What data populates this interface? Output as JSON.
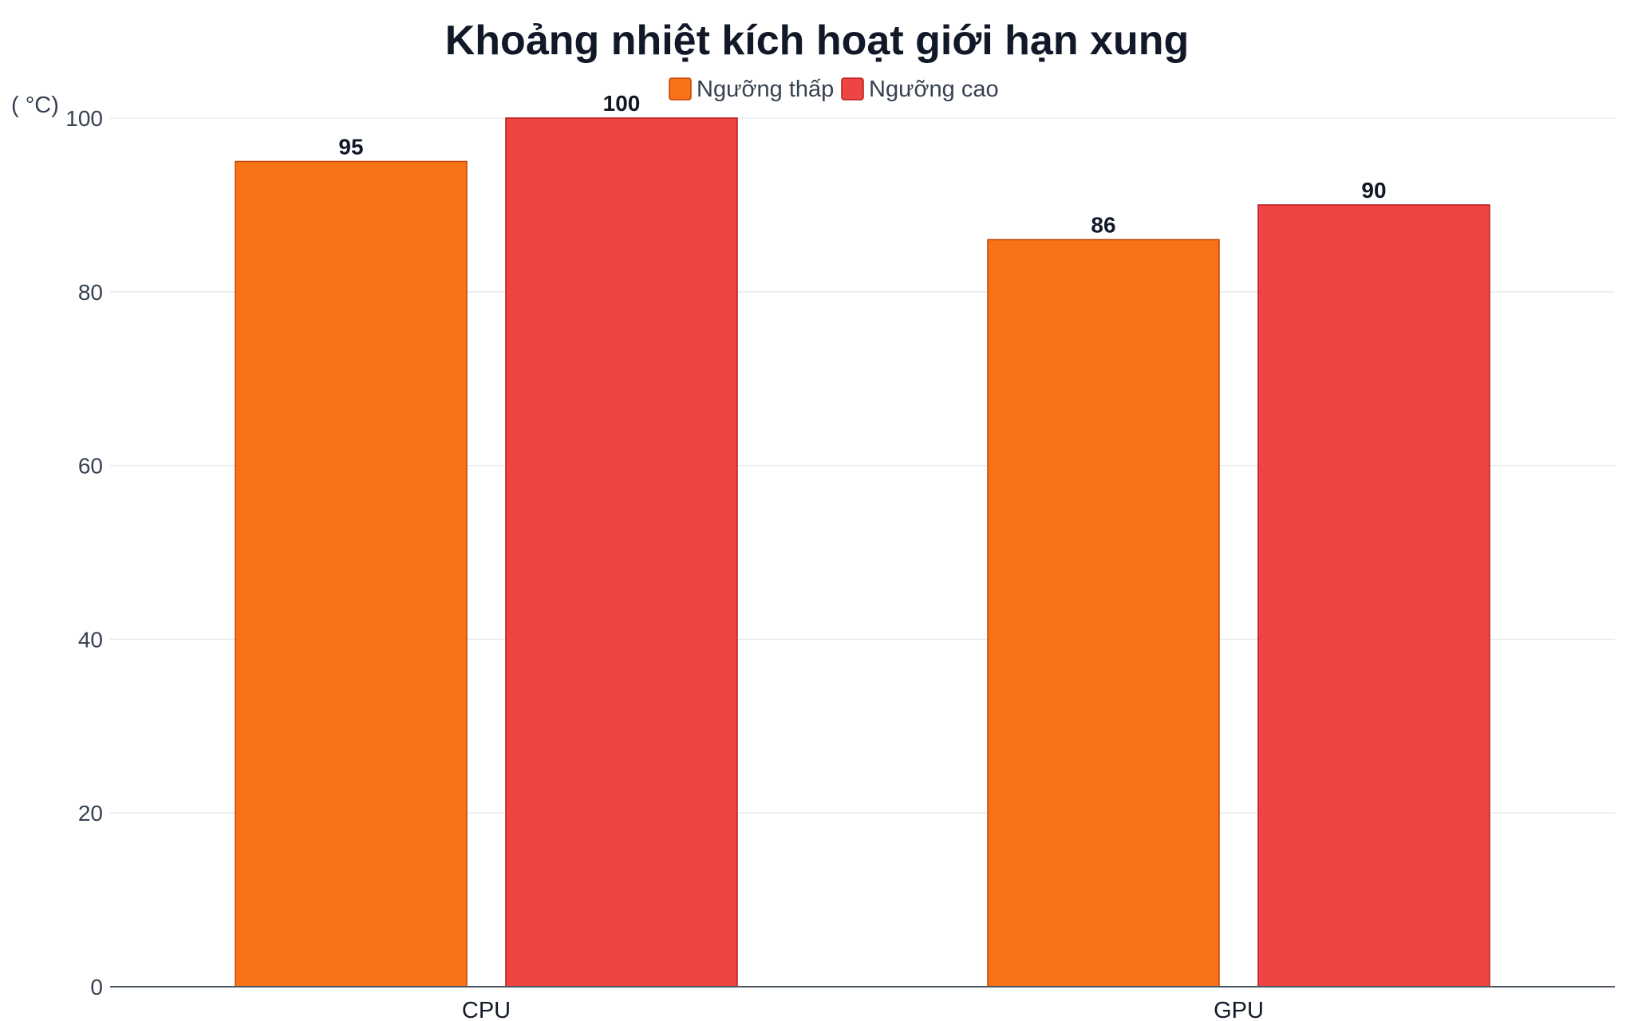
{
  "chart_data": {
    "type": "bar",
    "title": "Khoảng nhiệt kích hoạt giới hạn xung",
    "ylabel": "( °C)",
    "xlabel": "",
    "categories": [
      "CPU",
      "GPU"
    ],
    "series": [
      {
        "name": "Ngưỡng thấp",
        "values": [
          95,
          86
        ],
        "color": "#f97316",
        "stroke": "#c2410c"
      },
      {
        "name": "Ngưỡng cao",
        "values": [
          100,
          90
        ],
        "color": "#ef4444",
        "stroke": "#b91c1c"
      }
    ],
    "ylim": [
      0,
      100
    ],
    "yticks": [
      0,
      20,
      40,
      60,
      80,
      100
    ],
    "grid": true,
    "legend_position": "top-center",
    "data_labels": true
  }
}
